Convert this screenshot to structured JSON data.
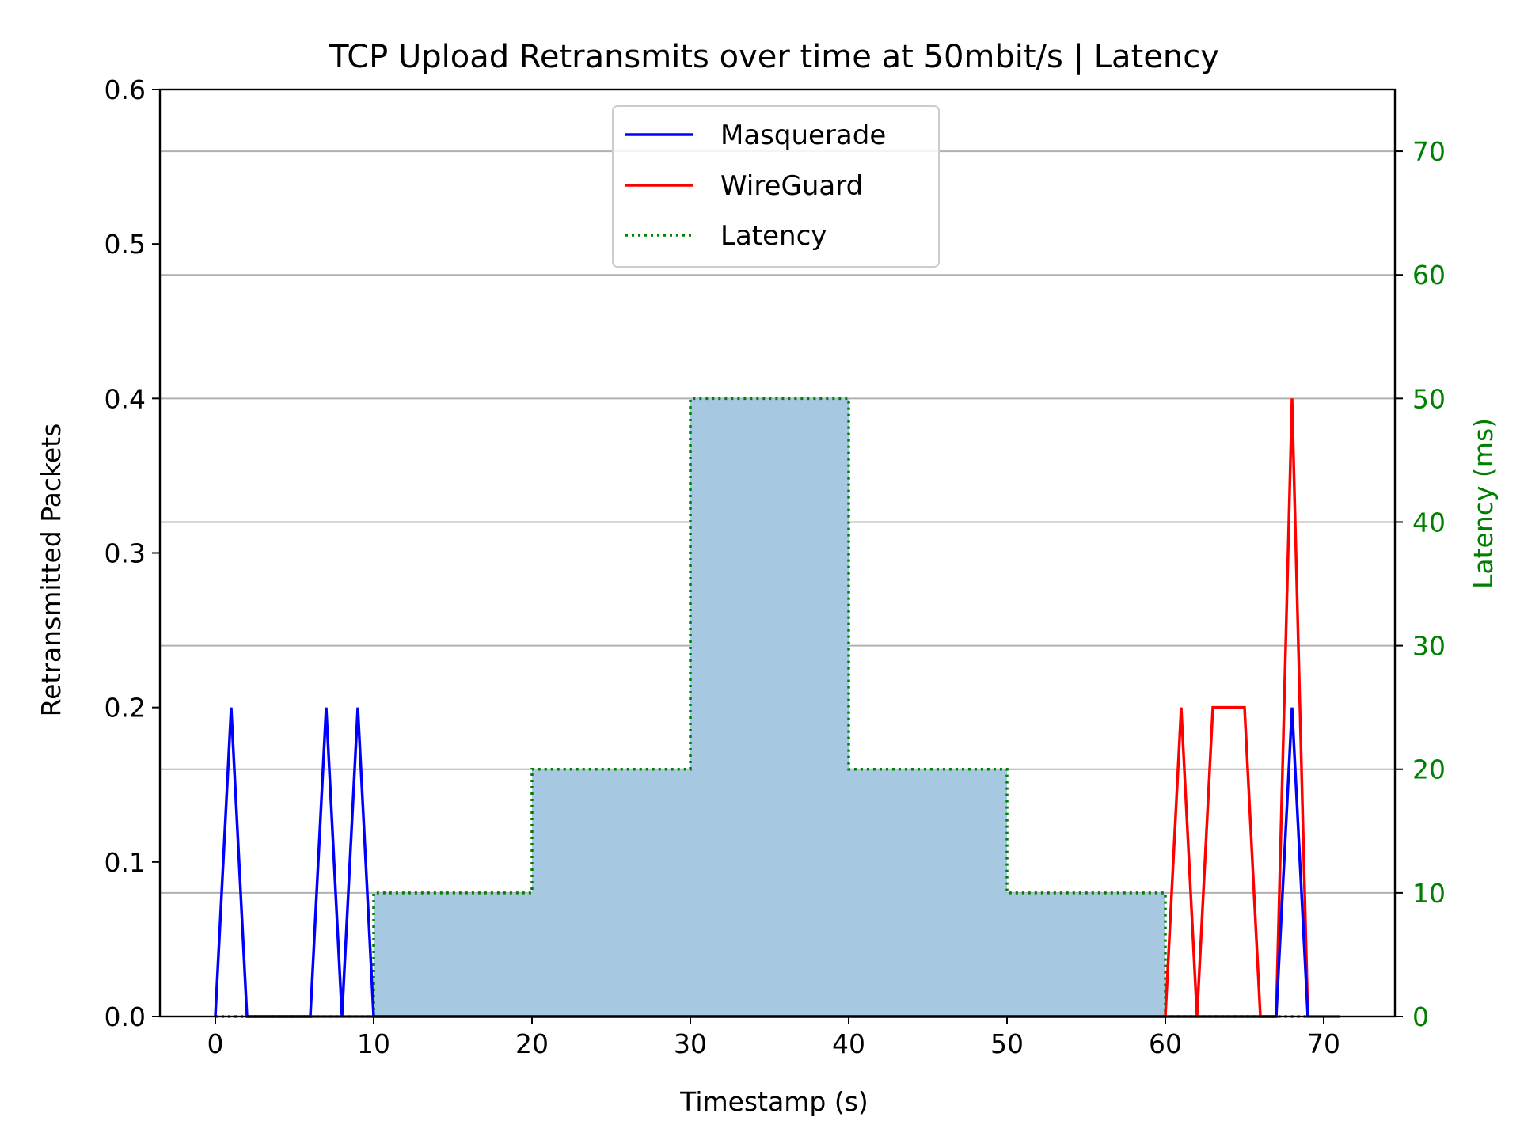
{
  "chart_data": {
    "type": "line",
    "title": "TCP Upload Retransmits over time at 50mbit/s | Latency",
    "xlabel": "Timestamp (s)",
    "ylabel": "Retransmitted Packets",
    "y2label": "Latency (ms)",
    "xlim": [
      -3.5,
      74.5
    ],
    "ylim": [
      0,
      0.6
    ],
    "y2lim": [
      0,
      75
    ],
    "xticks": [
      "0",
      "10",
      "20",
      "30",
      "40",
      "50",
      "60",
      "70"
    ],
    "yticks": [
      "0.0",
      "0.1",
      "0.2",
      "0.3",
      "0.4",
      "0.5",
      "0.6"
    ],
    "y2ticks": [
      "0",
      "10",
      "20",
      "30",
      "40",
      "50",
      "60",
      "70"
    ],
    "grid": "horizontal, aligned with right axis ticks",
    "legend_position": "top-center",
    "colors": {
      "masquerade": "#0000ff",
      "wireguard": "#ff0000",
      "latency": "#008000",
      "latency_fill": "#a6c8e0",
      "right_axis": "#008000",
      "grid": "#b0b0b0"
    },
    "series": [
      {
        "name": "Masquerade",
        "axis": "left",
        "style": "solid",
        "x": [
          0,
          1,
          2,
          3,
          4,
          5,
          6,
          7,
          8,
          9,
          10,
          11,
          12,
          13,
          14,
          15,
          16,
          17,
          18,
          19,
          20,
          21,
          22,
          23,
          24,
          25,
          26,
          27,
          28,
          29,
          30,
          31,
          32,
          33,
          34,
          35,
          36,
          37,
          38,
          39,
          40,
          41,
          42,
          43,
          44,
          45,
          46,
          47,
          48,
          49,
          50,
          51,
          52,
          53,
          54,
          55,
          56,
          57,
          58,
          59,
          60,
          61,
          62,
          63,
          64,
          65,
          66,
          67,
          68,
          69
        ],
        "values": [
          0,
          0.2,
          0,
          0,
          0,
          0,
          0,
          0.2,
          0,
          0.2,
          0,
          0,
          0,
          0,
          0,
          0,
          0,
          0,
          0,
          0,
          0,
          0,
          0,
          0,
          0,
          0,
          0,
          0,
          0,
          0,
          0,
          0,
          0,
          0,
          0,
          0,
          0,
          0,
          0,
          0,
          0,
          0,
          0,
          0,
          0,
          0,
          0,
          0,
          0,
          0,
          0,
          0,
          0,
          0,
          0,
          0,
          0,
          0,
          0,
          0,
          0,
          0,
          0,
          0,
          0,
          0,
          0,
          0,
          0.2,
          0
        ]
      },
      {
        "name": "WireGuard",
        "axis": "left",
        "style": "solid",
        "x": [
          2,
          3,
          4,
          5,
          6,
          7,
          8,
          9,
          10,
          11,
          12,
          13,
          14,
          15,
          16,
          17,
          18,
          19,
          20,
          21,
          22,
          23,
          24,
          25,
          26,
          27,
          28,
          29,
          30,
          31,
          32,
          33,
          34,
          35,
          36,
          37,
          38,
          39,
          40,
          41,
          42,
          43,
          44,
          45,
          46,
          47,
          48,
          49,
          50,
          51,
          52,
          53,
          54,
          55,
          56,
          57,
          58,
          59,
          60,
          61,
          62,
          63,
          64,
          65,
          66,
          67,
          68,
          69,
          70,
          71
        ],
        "values": [
          0,
          0,
          0,
          0,
          0,
          0,
          0,
          0,
          0,
          0,
          0,
          0,
          0,
          0,
          0,
          0,
          0,
          0,
          0,
          0,
          0,
          0,
          0,
          0,
          0,
          0,
          0,
          0,
          0,
          0,
          0,
          0,
          0,
          0,
          0,
          0,
          0,
          0,
          0,
          0,
          0,
          0,
          0,
          0,
          0,
          0,
          0,
          0,
          0,
          0,
          0,
          0,
          0,
          0,
          0,
          0,
          0,
          0,
          0,
          0.2,
          0,
          0.2,
          0.2,
          0.2,
          0,
          0,
          0.4,
          0,
          0,
          0
        ]
      },
      {
        "name": "Latency",
        "axis": "right",
        "style": "dotted-step",
        "filled": true,
        "x": [
          0,
          10,
          10,
          20,
          20,
          30,
          30,
          40,
          40,
          50,
          50,
          60,
          60,
          69
        ],
        "values": [
          0,
          0,
          10,
          10,
          20,
          20,
          50,
          50,
          20,
          20,
          10,
          10,
          0,
          0
        ]
      }
    ]
  }
}
